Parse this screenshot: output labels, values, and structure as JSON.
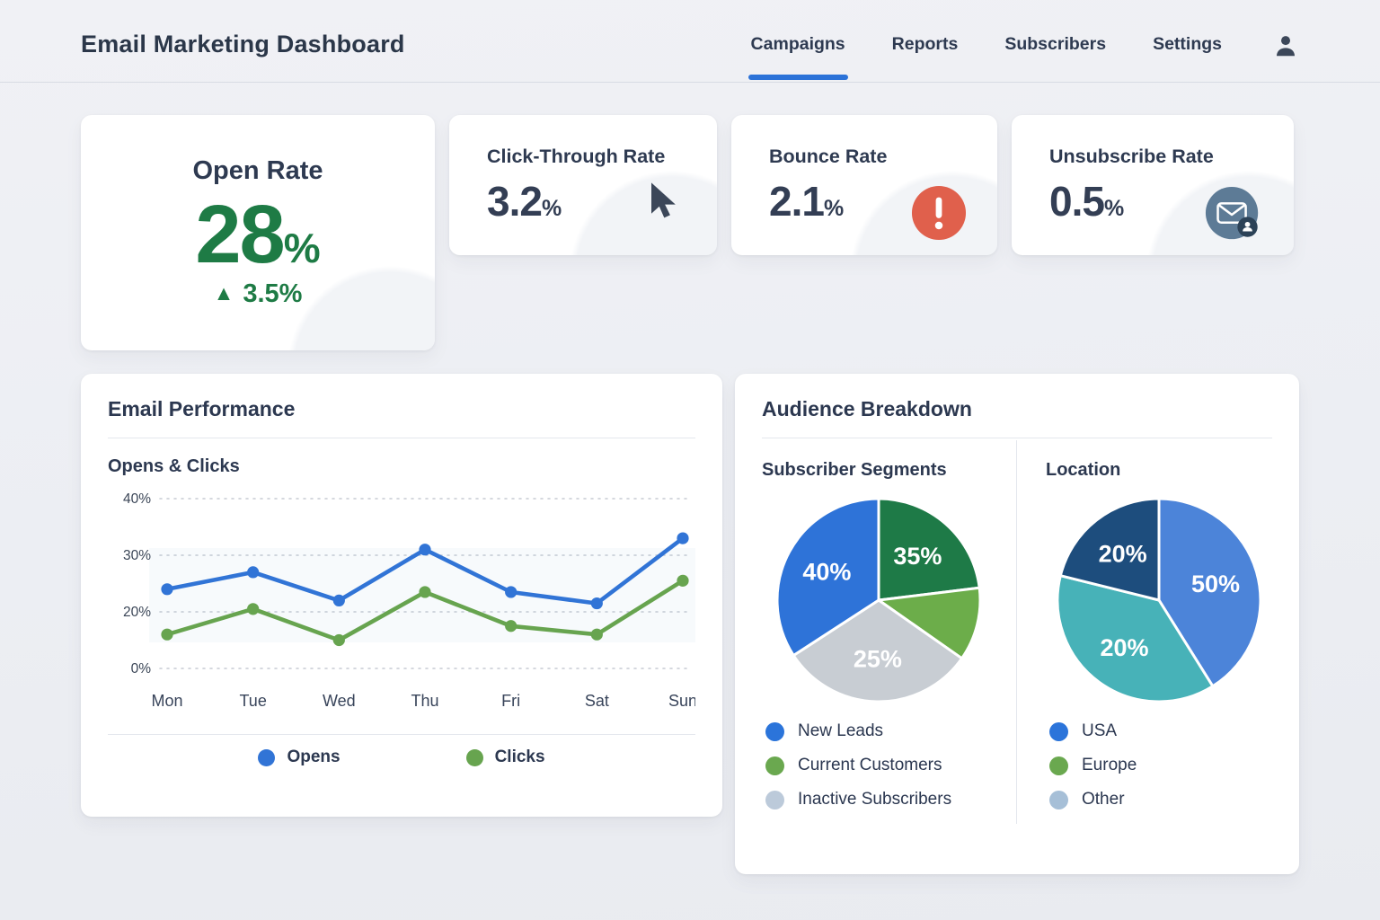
{
  "header": {
    "title": "Email Marketing Dashboard",
    "nav": [
      {
        "label": "Campaigns",
        "active": true
      },
      {
        "label": "Reports",
        "active": false
      },
      {
        "label": "Subscribers",
        "active": false
      },
      {
        "label": "Settings",
        "active": false
      }
    ]
  },
  "kpis": {
    "open_rate": {
      "title": "Open Rate",
      "value": "28",
      "unit": "%",
      "delta": "3.5%",
      "delta_direction": "up"
    },
    "click_through_rate": {
      "title": "Click-Through Rate",
      "value": "3.2",
      "unit": "%"
    },
    "bounce_rate": {
      "title": "Bounce Rate",
      "value": "2.1",
      "unit": "%"
    },
    "unsubscribe_rate": {
      "title": "Unsubscribe Rate",
      "value": "0.5",
      "unit": "%"
    }
  },
  "icons": {
    "open_rate_delta": "up-triangle",
    "click_through_rate": "mouse-cursor",
    "bounce_rate": "alert-exclamation-circle",
    "unsubscribe_rate": "email-envelope-badge",
    "nav_user": "user-person"
  },
  "performance": {
    "title": "Email Performance",
    "subtitle": "Opens & Clicks"
  },
  "audience": {
    "title": "Audience Breakdown",
    "segments": {
      "title": "Subscriber Segments",
      "legend": [
        {
          "label": "New Leads",
          "color": "#2b74da"
        },
        {
          "label": "Current Customers",
          "color": "#6aa84f"
        },
        {
          "label": "Inactive Subscribers",
          "color": "#bccada"
        }
      ]
    },
    "location": {
      "title": "Location",
      "legend": [
        {
          "label": "USA",
          "color": "#2b74da"
        },
        {
          "label": "Europe",
          "color": "#6aa84f"
        },
        {
          "label": "Other",
          "color": "#a6bfd7"
        }
      ]
    }
  },
  "chart_data": [
    {
      "type": "line",
      "title": "Opens & Clicks",
      "categories": [
        "Mon",
        "Tue",
        "Wed",
        "Thu",
        "Fri",
        "Sat",
        "Sun"
      ],
      "series": [
        {
          "name": "Opens",
          "color": "#3174d6",
          "values": [
            24,
            27,
            22,
            31,
            23.5,
            21.5,
            33
          ]
        },
        {
          "name": "Clicks",
          "color": "#67a44f",
          "values": [
            16,
            20.5,
            15,
            23.5,
            17.5,
            16,
            25.5
          ]
        }
      ],
      "yticks": [
        "40%",
        "30%",
        "20%",
        "0%"
      ],
      "grid": true,
      "grid_style": "dotted",
      "legend_position": "bottom"
    },
    {
      "type": "pie",
      "title": "Subscriber Segments",
      "slices": [
        {
          "name": "Current Customers",
          "label": "35%",
          "value": 35,
          "color": "#1e7a47",
          "start_angle": 0,
          "end_angle": 83
        },
        {
          "name": "",
          "label": "",
          "value": null,
          "color": "#6cad4a",
          "start_angle": 83,
          "end_angle": 125
        },
        {
          "name": "Inactive Subscribers",
          "label": "25%",
          "value": 25,
          "color": "#c8cdd3",
          "start_angle": 125,
          "end_angle": 237
        },
        {
          "name": "New Leads",
          "label": "40%",
          "value": 40,
          "color": "#2e73d8",
          "start_angle": 237,
          "end_angle": 360
        }
      ]
    },
    {
      "type": "pie",
      "title": "Location",
      "slices": [
        {
          "name": "USA",
          "label": "50%",
          "value": 50,
          "color": "#4c84d9",
          "start_angle": 0,
          "end_angle": 148
        },
        {
          "name": "Europe",
          "label": "20%",
          "value": 20,
          "color": "#47b2b8",
          "start_angle": 148,
          "end_angle": 284
        },
        {
          "name": "Other",
          "label": "20%",
          "value": 20,
          "color": "#1d4d7d",
          "start_angle": 284,
          "end_angle": 360
        }
      ]
    }
  ],
  "colors": {
    "accent_blue": "#2b72d8",
    "positive_green": "#1e7b45",
    "alert_red": "#e0604c",
    "slate_icon": "#5d7b96",
    "heading": "#2c3850"
  }
}
